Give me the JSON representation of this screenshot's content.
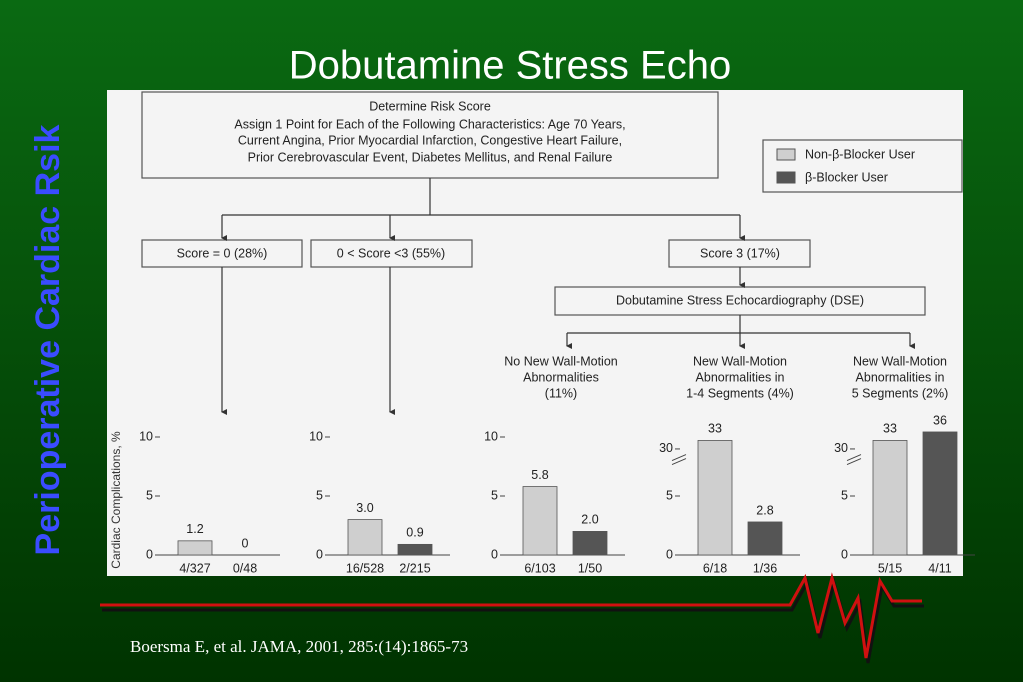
{
  "title": "Dobutamine Stress Echo",
  "side_title": "Perioperative Cardiac Rsik",
  "citation": "Boersma E, et al.  JAMA, 2001, 285:(14):1865-73",
  "flow": {
    "risk_box": {
      "title": "Determine Risk Score",
      "lines": [
        "Assign 1 Point for Each of the Following Characteristics: Age  70 Years,",
        "Current Angina, Prior Myocardial Infarction, Congestive Heart Failure,",
        "Prior Cerebrovascular Event, Diabetes Mellitus, and Renal Failure"
      ]
    },
    "scores": [
      "Score = 0 (28%)",
      "0 < Score <3 (55%)",
      "Score  3 (17%)"
    ],
    "dse": "Dobutamine Stress Echocardiography (DSE)",
    "outcomes": [
      [
        "No New Wall-Motion",
        "Abnormalities",
        "(11%)"
      ],
      [
        "New Wall-Motion",
        "Abnormalities in",
        "1-4 Segments (4%)"
      ],
      [
        "New Wall-Motion",
        "Abnormalities in",
        "5 Segments (2%)"
      ]
    ],
    "legend": [
      "Non-β-Blocker User",
      "β-Blocker User"
    ]
  },
  "chart_data": [
    {
      "type": "bar",
      "y_label": "Cardiac Complications, %",
      "categories": [
        "4/327",
        "0/48"
      ],
      "values": [
        1.2,
        0
      ],
      "colors": [
        "#cfcfcf",
        "#555555"
      ],
      "ylim": [
        0,
        10
      ],
      "yticks": [
        0,
        5,
        10
      ]
    },
    {
      "type": "bar",
      "categories": [
        "16/528",
        "2/215"
      ],
      "values": [
        3.0,
        0.9
      ],
      "value_labels": [
        "3.0",
        "0.9"
      ],
      "colors": [
        "#cfcfcf",
        "#555555"
      ],
      "ylim": [
        0,
        10
      ],
      "yticks": [
        0,
        5,
        10
      ]
    },
    {
      "type": "bar",
      "categories": [
        "6/103",
        "1/50"
      ],
      "values": [
        5.8,
        2.0
      ],
      "value_labels": [
        "5.8",
        "2.0"
      ],
      "colors": [
        "#cfcfcf",
        "#555555"
      ],
      "ylim": [
        0,
        10
      ],
      "yticks": [
        0,
        5,
        10
      ]
    },
    {
      "type": "bar",
      "categories": [
        "6/18",
        "1/36"
      ],
      "values": [
        33,
        2.8
      ],
      "colors": [
        "#cfcfcf",
        "#555555"
      ],
      "ylim": [
        0,
        36
      ],
      "yticks": [
        0,
        5,
        30
      ],
      "axis_break": [
        8,
        28
      ]
    },
    {
      "type": "bar",
      "categories": [
        "5/15",
        "4/11"
      ],
      "values": [
        33,
        36
      ],
      "colors": [
        "#cfcfcf",
        "#555555"
      ],
      "ylim": [
        0,
        36
      ],
      "yticks": [
        0,
        5,
        30
      ],
      "axis_break": [
        8,
        28
      ]
    }
  ]
}
